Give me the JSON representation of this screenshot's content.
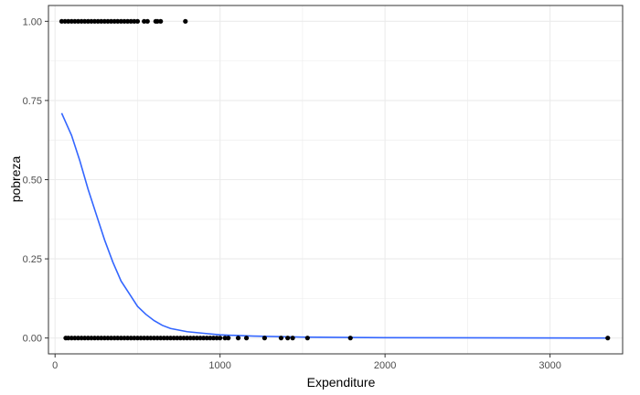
{
  "chart_data": {
    "type": "scatter",
    "title": "",
    "xlabel": "Expenditure",
    "ylabel": "pobreza",
    "xlim": [
      -40,
      3440
    ],
    "ylim": [
      -0.05,
      1.05
    ],
    "x_ticks": [
      0,
      1000,
      2000,
      3000
    ],
    "x_tick_labels": [
      "0",
      "1000",
      "2000",
      "3000"
    ],
    "y_ticks": [
      0,
      0.25,
      0.5,
      0.75,
      1
    ],
    "y_tick_labels": [
      "0.00",
      "0.25",
      "0.50",
      "0.75",
      "1.00"
    ],
    "grid": true,
    "legend": "none",
    "colors": {
      "points": "#000000",
      "curve": "#3366FF",
      "grid": "#ebebeb",
      "panel_border": "#333333"
    },
    "series": [
      {
        "type": "scatter",
        "points": [
          [
            40,
            1
          ],
          [
            60,
            1
          ],
          [
            80,
            1
          ],
          [
            100,
            1
          ],
          [
            120,
            1
          ],
          [
            140,
            1
          ],
          [
            160,
            1
          ],
          [
            180,
            1
          ],
          [
            200,
            1
          ],
          [
            220,
            1
          ],
          [
            240,
            1
          ],
          [
            260,
            1
          ],
          [
            280,
            1
          ],
          [
            300,
            1
          ],
          [
            320,
            1
          ],
          [
            340,
            1
          ],
          [
            360,
            1
          ],
          [
            380,
            1
          ],
          [
            400,
            1
          ],
          [
            420,
            1
          ],
          [
            440,
            1
          ],
          [
            460,
            1
          ],
          [
            480,
            1
          ],
          [
            500,
            1
          ],
          [
            540,
            1
          ],
          [
            560,
            1
          ],
          [
            610,
            1
          ],
          [
            620,
            1
          ],
          [
            640,
            1
          ],
          [
            790,
            1
          ],
          [
            65,
            0
          ],
          [
            80,
            0
          ],
          [
            100,
            0
          ],
          [
            120,
            0
          ],
          [
            140,
            0
          ],
          [
            160,
            0
          ],
          [
            180,
            0
          ],
          [
            200,
            0
          ],
          [
            220,
            0
          ],
          [
            240,
            0
          ],
          [
            260,
            0
          ],
          [
            280,
            0
          ],
          [
            300,
            0
          ],
          [
            320,
            0
          ],
          [
            340,
            0
          ],
          [
            360,
            0
          ],
          [
            380,
            0
          ],
          [
            400,
            0
          ],
          [
            420,
            0
          ],
          [
            440,
            0
          ],
          [
            460,
            0
          ],
          [
            480,
            0
          ],
          [
            500,
            0
          ],
          [
            520,
            0
          ],
          [
            540,
            0
          ],
          [
            560,
            0
          ],
          [
            580,
            0
          ],
          [
            600,
            0
          ],
          [
            620,
            0
          ],
          [
            640,
            0
          ],
          [
            660,
            0
          ],
          [
            680,
            0
          ],
          [
            700,
            0
          ],
          [
            720,
            0
          ],
          [
            740,
            0
          ],
          [
            760,
            0
          ],
          [
            780,
            0
          ],
          [
            800,
            0
          ],
          [
            820,
            0
          ],
          [
            840,
            0
          ],
          [
            860,
            0
          ],
          [
            880,
            0
          ],
          [
            900,
            0
          ],
          [
            920,
            0
          ],
          [
            940,
            0
          ],
          [
            960,
            0
          ],
          [
            980,
            0
          ],
          [
            1000,
            0
          ],
          [
            1030,
            0
          ],
          [
            1050,
            0
          ],
          [
            1110,
            0
          ],
          [
            1160,
            0
          ],
          [
            1270,
            0
          ],
          [
            1370,
            0
          ],
          [
            1410,
            0
          ],
          [
            1440,
            0
          ],
          [
            1530,
            0
          ],
          [
            1790,
            0
          ],
          [
            3350,
            0
          ]
        ]
      },
      {
        "type": "line",
        "points": [
          [
            40,
            0.71
          ],
          [
            100,
            0.64
          ],
          [
            150,
            0.56
          ],
          [
            200,
            0.47
          ],
          [
            250,
            0.39
          ],
          [
            300,
            0.31
          ],
          [
            350,
            0.24
          ],
          [
            400,
            0.18
          ],
          [
            450,
            0.14
          ],
          [
            500,
            0.1
          ],
          [
            550,
            0.075
          ],
          [
            600,
            0.055
          ],
          [
            650,
            0.04
          ],
          [
            700,
            0.03
          ],
          [
            800,
            0.02
          ],
          [
            900,
            0.015
          ],
          [
            1000,
            0.01
          ],
          [
            1200,
            0.006
          ],
          [
            1500,
            0.003
          ],
          [
            2000,
            0.001
          ],
          [
            3350,
            0.0
          ]
        ]
      }
    ]
  }
}
